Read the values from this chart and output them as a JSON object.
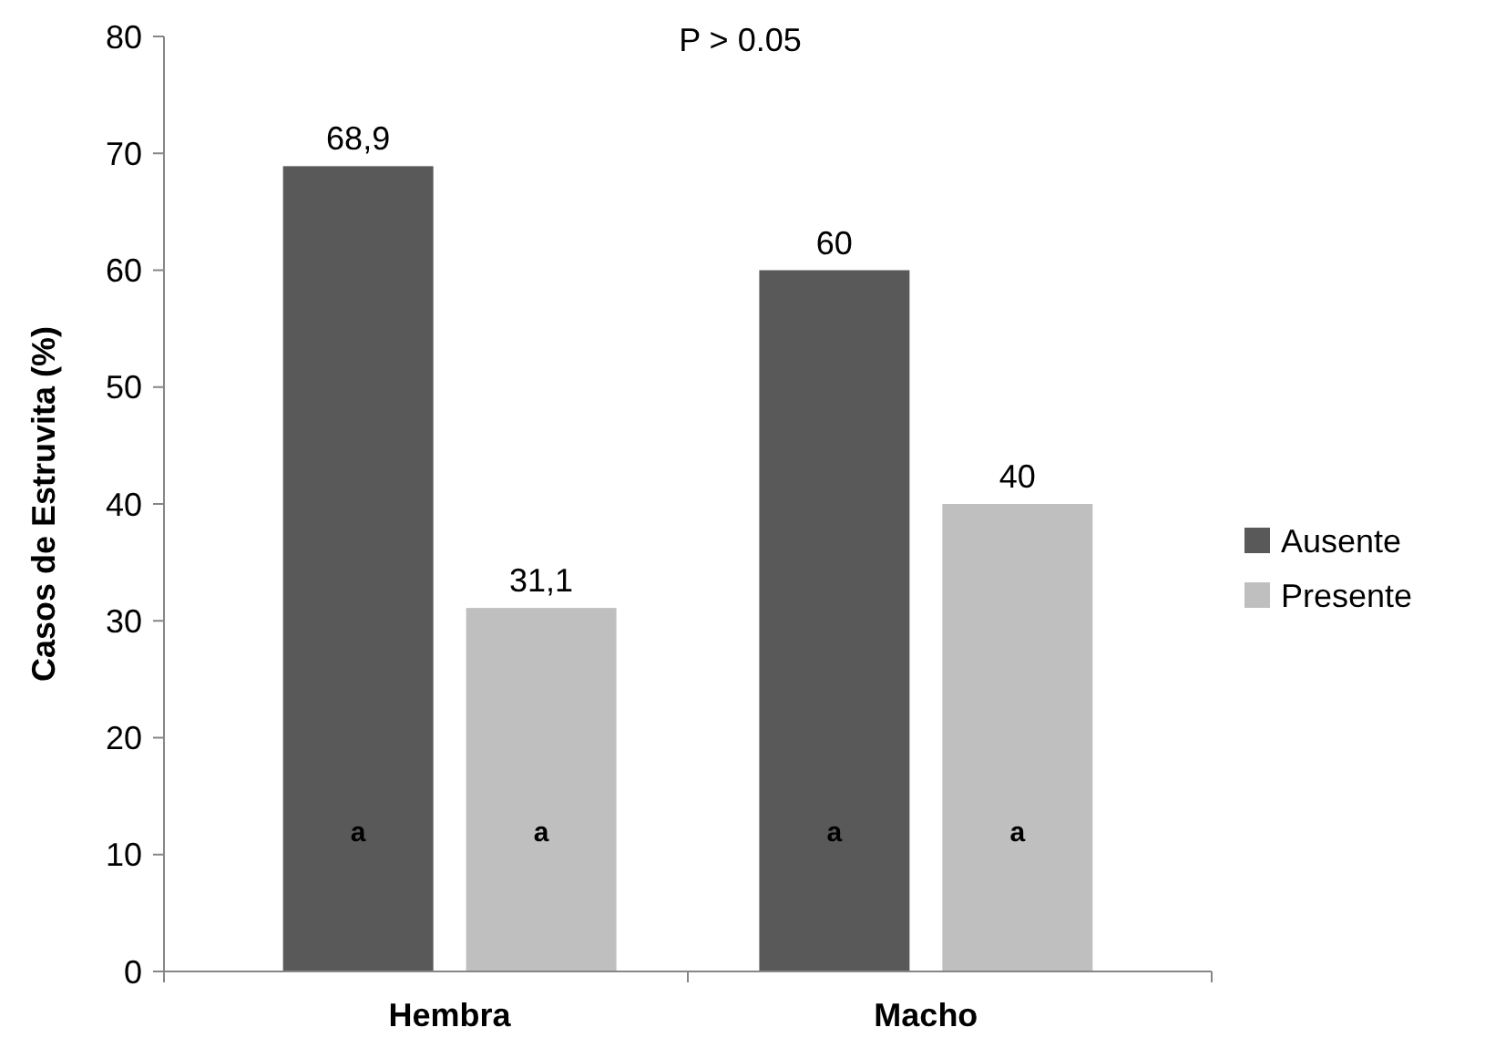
{
  "chart_data": {
    "type": "bar",
    "ylabel": "Casos de Estruvita (%)",
    "categories": [
      "Hembra",
      "Macho"
    ],
    "series": [
      {
        "name": "Ausente",
        "color": "#595959",
        "values": [
          68.9,
          60
        ],
        "value_labels": [
          "68,9",
          "60"
        ]
      },
      {
        "name": "Presente",
        "color": "#bfbfbf",
        "values": [
          31.1,
          40
        ],
        "value_labels": [
          "31,1",
          "40"
        ]
      }
    ],
    "ylim": [
      0,
      80
    ],
    "yticks": [
      0,
      10,
      20,
      30,
      40,
      50,
      60,
      70,
      80
    ],
    "grid": false,
    "legend": "right",
    "annotations": [
      "P > 0.05",
      "a",
      "a",
      "a",
      "a"
    ]
  }
}
